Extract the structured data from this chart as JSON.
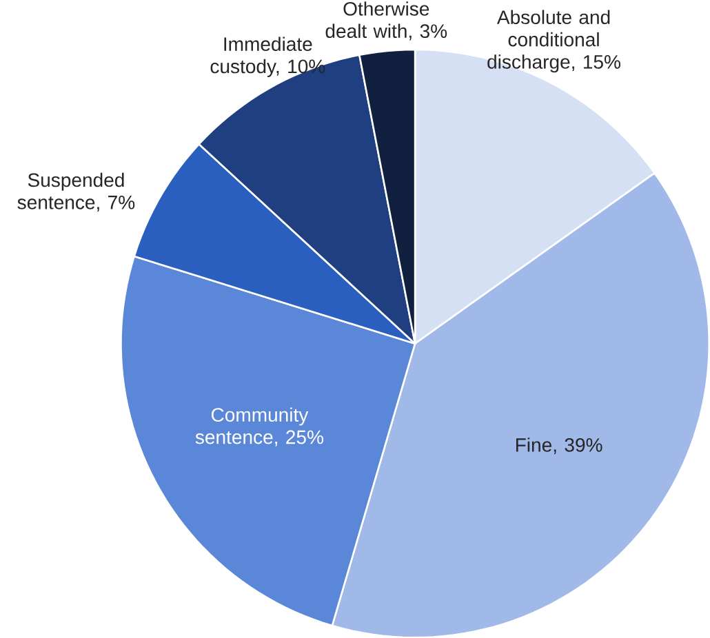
{
  "chart_data": {
    "type": "pie",
    "categories": [
      "Absolute and conditional discharge, 15%",
      "Fine, 39%",
      "Community sentence, 25%",
      "Suspended sentence, 7%",
      "Immediate custody, 10%",
      "Otherwise dealt with, 3%"
    ],
    "values": [
      15,
      39,
      25,
      7,
      10,
      3
    ],
    "colors": [
      "#d6e0f5",
      "#a0b9e8",
      "#5b87d9",
      "#2a5fc0",
      "#1f3f80",
      "#12203f"
    ]
  }
}
